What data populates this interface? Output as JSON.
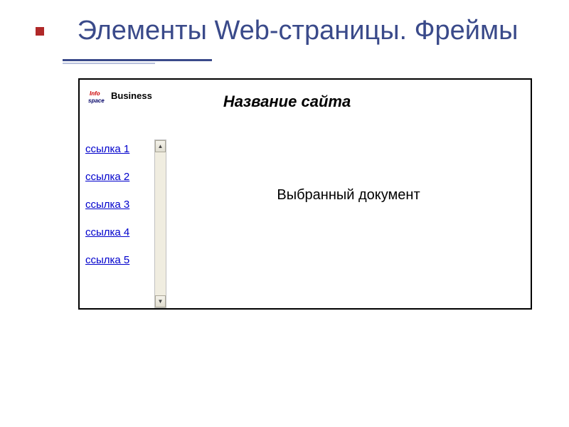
{
  "slide": {
    "title": "Элементы Web-страницы. Фреймы",
    "title_color": "#3a4a8a",
    "bullet_color": "#b02828",
    "underline_color": "#3a4a8a"
  },
  "frame": {
    "logo_text": "Business",
    "site_title": "Название сайта",
    "content_text": "Выбранный документ",
    "links": [
      {
        "label": "ссылка 1"
      },
      {
        "label": "ссылка 2"
      },
      {
        "label": "ссылка 3"
      },
      {
        "label": "ссылка 4"
      },
      {
        "label": "ссылка 5"
      }
    ],
    "link_color": "#0000cc"
  }
}
